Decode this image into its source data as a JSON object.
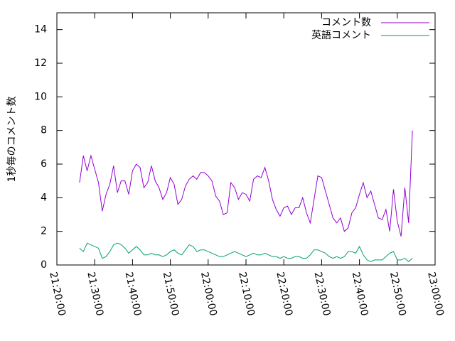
{
  "chart_data": {
    "type": "line",
    "ylabel": "1秒毎のコメント数",
    "xlim": [
      "21:20:00",
      "23:00:00"
    ],
    "xticks": [
      "21:20:00",
      "21:30:00",
      "21:40:00",
      "21:50:00",
      "22:00:00",
      "22:10:00",
      "22:20:00",
      "22:30:00",
      "22:40:00",
      "22:50:00",
      "23:00:00"
    ],
    "ylim": [
      0,
      15
    ],
    "yticks": [
      0,
      2,
      4,
      6,
      8,
      10,
      12,
      14
    ],
    "legend": "top-right",
    "x": [
      "21:26:00",
      "21:27:00",
      "21:28:00",
      "21:29:00",
      "21:30:00",
      "21:31:00",
      "21:32:00",
      "21:33:00",
      "21:34:00",
      "21:35:00",
      "21:36:00",
      "21:37:00",
      "21:38:00",
      "21:39:00",
      "21:40:00",
      "21:41:00",
      "21:42:00",
      "21:43:00",
      "21:44:00",
      "21:45:00",
      "21:46:00",
      "21:47:00",
      "21:48:00",
      "21:49:00",
      "21:50:00",
      "21:51:00",
      "21:52:00",
      "21:53:00",
      "21:54:00",
      "21:55:00",
      "21:56:00",
      "21:57:00",
      "21:58:00",
      "21:59:00",
      "22:00:00",
      "22:01:00",
      "22:02:00",
      "22:03:00",
      "22:04:00",
      "22:05:00",
      "22:06:00",
      "22:07:00",
      "22:08:00",
      "22:09:00",
      "22:10:00",
      "22:11:00",
      "22:12:00",
      "22:13:00",
      "22:14:00",
      "22:15:00",
      "22:16:00",
      "22:17:00",
      "22:18:00",
      "22:19:00",
      "22:20:00",
      "22:21:00",
      "22:22:00",
      "22:23:00",
      "22:24:00",
      "22:25:00",
      "22:26:00",
      "22:27:00",
      "22:28:00",
      "22:29:00",
      "22:30:00",
      "22:31:00",
      "22:32:00",
      "22:33:00",
      "22:34:00",
      "22:35:00",
      "22:36:00",
      "22:37:00",
      "22:38:00",
      "22:39:00",
      "22:40:00",
      "22:41:00",
      "22:42:00",
      "22:43:00",
      "22:44:00",
      "22:45:00",
      "22:46:00",
      "22:47:00",
      "22:48:00",
      "22:49:00",
      "22:50:00",
      "22:51:00",
      "22:52:00",
      "22:53:00",
      "22:54:00"
    ],
    "series": [
      {
        "name": "コメント数",
        "color": "#9400d3",
        "values": [
          4.9,
          6.5,
          5.6,
          6.5,
          5.7,
          4.9,
          3.2,
          4.2,
          4.8,
          5.9,
          4.3,
          5.0,
          5.0,
          4.2,
          5.6,
          6.0,
          5.8,
          4.6,
          4.9,
          5.9,
          5.0,
          4.6,
          3.9,
          4.3,
          5.2,
          4.8,
          3.6,
          3.9,
          4.7,
          5.1,
          5.3,
          5.1,
          5.5,
          5.5,
          5.3,
          5.0,
          4.1,
          3.8,
          3.0,
          3.1,
          4.9,
          4.6,
          3.9,
          4.3,
          4.2,
          3.8,
          5.1,
          5.3,
          5.2,
          5.8,
          5.0,
          3.9,
          3.3,
          2.9,
          3.4,
          3.5,
          3.0,
          3.4,
          3.4,
          4.0,
          3.1,
          2.5,
          3.9,
          5.3,
          5.2,
          4.4,
          3.6,
          2.8,
          2.5,
          2.8,
          2.0,
          2.2,
          3.1,
          3.4,
          4.2,
          4.9,
          4.0,
          4.4,
          3.6,
          2.8,
          2.7,
          3.3,
          2.0,
          4.5,
          2.6,
          1.7,
          4.6,
          2.5,
          8.0
        ]
      },
      {
        "name": "英語コメント",
        "color": "#009e73",
        "values": [
          1.0,
          0.8,
          1.3,
          1.2,
          1.1,
          1.0,
          0.4,
          0.5,
          0.8,
          1.2,
          1.3,
          1.2,
          1.0,
          0.7,
          0.9,
          1.1,
          0.9,
          0.6,
          0.6,
          0.7,
          0.6,
          0.6,
          0.5,
          0.6,
          0.8,
          0.9,
          0.7,
          0.6,
          0.9,
          1.2,
          1.1,
          0.8,
          0.9,
          0.9,
          0.8,
          0.7,
          0.6,
          0.5,
          0.5,
          0.6,
          0.7,
          0.8,
          0.7,
          0.6,
          0.5,
          0.6,
          0.7,
          0.6,
          0.6,
          0.7,
          0.6,
          0.5,
          0.5,
          0.4,
          0.5,
          0.4,
          0.4,
          0.5,
          0.5,
          0.4,
          0.4,
          0.6,
          0.9,
          0.9,
          0.8,
          0.7,
          0.5,
          0.4,
          0.5,
          0.4,
          0.5,
          0.8,
          0.8,
          0.7,
          1.1,
          0.6,
          0.3,
          0.2,
          0.3,
          0.3,
          0.3,
          0.5,
          0.7,
          0.8,
          0.3,
          0.3,
          0.4,
          0.2,
          0.4
        ]
      }
    ]
  }
}
